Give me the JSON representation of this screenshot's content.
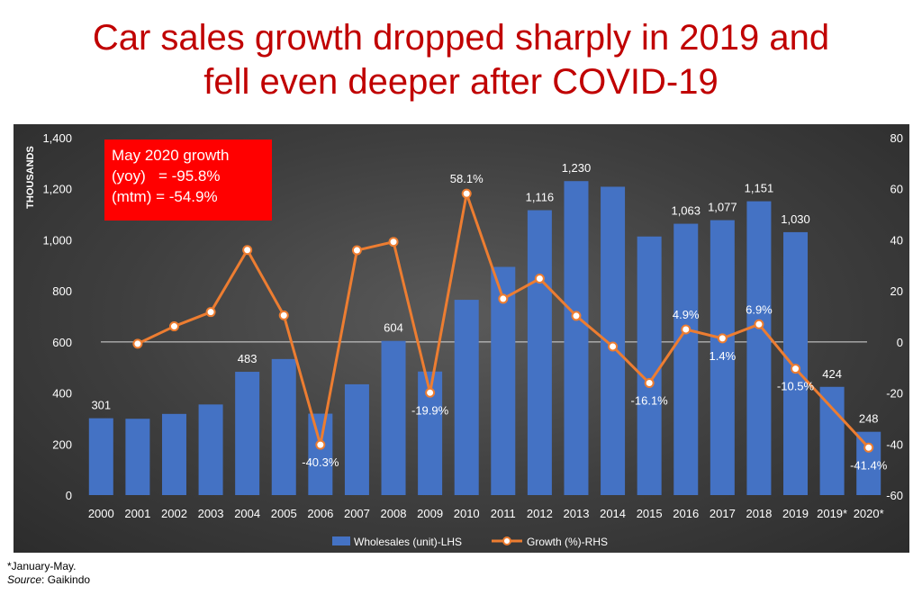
{
  "title_lines": [
    "Car sales growth dropped sharply in 2019 and",
    "fell even deeper after COVID-19"
  ],
  "annotation_lines": [
    "May 2020 growth",
    "(yoy)   = -95.8%",
    "(mtm) = -54.9%"
  ],
  "footnote": {
    "line1": "*January-May.",
    "source_label": "Source",
    "source_value": ": Gaikindo"
  },
  "colors": {
    "bar": "#4472c4",
    "line": "#ed7d31",
    "title": "#c00000",
    "annotation_bg": "#ff0000"
  },
  "chart_data": {
    "type": "bar",
    "categories": [
      "2000",
      "2001",
      "2002",
      "2003",
      "2004",
      "2005",
      "2006",
      "2007",
      "2008",
      "2009",
      "2010",
      "2011",
      "2012",
      "2013",
      "2014",
      "2015",
      "2016",
      "2017",
      "2018",
      "2019",
      "2019*",
      "2020*"
    ],
    "ylabel": "THOUSANDS",
    "ylim": [
      0,
      1400
    ],
    "yticks": [
      "0",
      "200",
      "400",
      "600",
      "800",
      "1,000",
      "1,200",
      "1,400"
    ],
    "y2lim": [
      -60,
      80
    ],
    "y2ticks": [
      "-60",
      "-40",
      "-20",
      "0",
      "20",
      "40",
      "60",
      "80"
    ],
    "series": [
      {
        "name": "Wholesales (unit)-LHS",
        "type": "bar",
        "axis": "left",
        "values": [
          301,
          299,
          318,
          355,
          483,
          533,
          319,
          434,
          604,
          484,
          765,
          894,
          1116,
          1230,
          1208,
          1013,
          1063,
          1077,
          1151,
          1030,
          424,
          248
        ],
        "labels": [
          "301",
          null,
          null,
          null,
          "483",
          null,
          null,
          null,
          "604",
          null,
          null,
          null,
          "1,116",
          "1,230",
          null,
          null,
          "1,063",
          "1,077",
          "1,151",
          "1,030",
          "424",
          "248"
        ]
      },
      {
        "name": "Growth (%)-RHS",
        "type": "line",
        "axis": "right",
        "values": [
          null,
          -0.7,
          6.1,
          11.7,
          36.0,
          10.4,
          -40.3,
          35.9,
          39.2,
          -19.9,
          58.1,
          16.9,
          24.8,
          10.2,
          -1.8,
          -16.1,
          4.9,
          1.4,
          6.9,
          -10.5,
          null,
          -41.4
        ],
        "labels": [
          null,
          null,
          null,
          null,
          null,
          null,
          "-40.3%",
          null,
          null,
          "-19.9%",
          "58.1%",
          null,
          null,
          null,
          null,
          "-16.1%",
          "4.9%",
          "1.4%",
          "6.9%",
          "-10.5%",
          null,
          "-41.4%"
        ]
      }
    ],
    "legend_position": "bottom",
    "grid": false
  }
}
